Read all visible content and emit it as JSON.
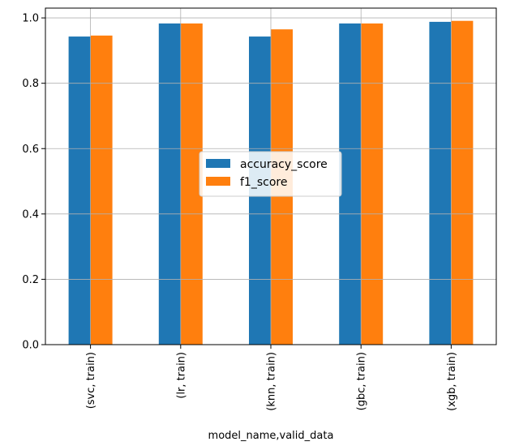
{
  "chart_data": {
    "type": "bar",
    "categories": [
      "(svc, train)",
      "(lr, train)",
      "(knn, train)",
      "(gbc, train)",
      "(xgb, train)"
    ],
    "series": [
      {
        "name": "accuracy_score",
        "values": [
          0.943,
          0.983,
          0.943,
          0.983,
          0.988
        ],
        "color": "#1f77b4"
      },
      {
        "name": "f1_score",
        "values": [
          0.946,
          0.983,
          0.965,
          0.983,
          0.991
        ],
        "color": "#ff7f0e"
      }
    ],
    "title": "",
    "xlabel": "model_name,valid_data",
    "ylabel": "",
    "ylim": [
      0,
      1.0
    ],
    "yticks": [
      0.0,
      0.2,
      0.4,
      0.6,
      0.8,
      1.0
    ],
    "ytick_labels": [
      "0.0",
      "0.2",
      "0.4",
      "0.6",
      "0.8",
      "1.0"
    ],
    "grid": true,
    "legend_position": "center"
  }
}
